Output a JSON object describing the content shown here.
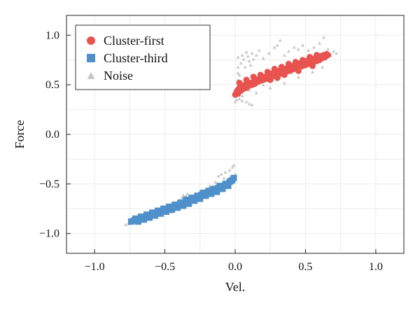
{
  "chart_data": {
    "type": "scatter",
    "title": "",
    "xlabel": "Vel.",
    "ylabel": "Force",
    "xlim": [
      -1.2,
      1.2
    ],
    "ylim": [
      -1.2,
      1.2
    ],
    "x_ticks": [
      -1.0,
      -0.5,
      0.0,
      0.5,
      1.0
    ],
    "x_tick_labels": [
      "−1.0",
      "−0.5",
      "0.0",
      "0.5",
      "1.0"
    ],
    "y_ticks": [
      1.0,
      0.5,
      0.0,
      -0.5,
      -1.0
    ],
    "y_tick_labels": [
      "1.0",
      "0.5",
      "0.0",
      "−0.5",
      "−1.0"
    ],
    "grid": true,
    "legend_position": "top-left",
    "series": [
      {
        "name": "Cluster-first",
        "marker": "circle",
        "color": "#e8534f",
        "points": [
          [
            0.0,
            0.4
          ],
          [
            0.01,
            0.43
          ],
          [
            0.02,
            0.45
          ],
          [
            0.03,
            0.47
          ],
          [
            0.05,
            0.48
          ],
          [
            0.07,
            0.5
          ],
          [
            0.09,
            0.51
          ],
          [
            0.11,
            0.52
          ],
          [
            0.13,
            0.53
          ],
          [
            0.15,
            0.55
          ],
          [
            0.17,
            0.56
          ],
          [
            0.19,
            0.57
          ],
          [
            0.21,
            0.58
          ],
          [
            0.23,
            0.59
          ],
          [
            0.25,
            0.61
          ],
          [
            0.27,
            0.62
          ],
          [
            0.29,
            0.63
          ],
          [
            0.31,
            0.64
          ],
          [
            0.33,
            0.65
          ],
          [
            0.35,
            0.66
          ],
          [
            0.37,
            0.67
          ],
          [
            0.39,
            0.68
          ],
          [
            0.41,
            0.69
          ],
          [
            0.43,
            0.7
          ],
          [
            0.45,
            0.71
          ],
          [
            0.47,
            0.72
          ],
          [
            0.49,
            0.73
          ],
          [
            0.51,
            0.74
          ],
          [
            0.53,
            0.75
          ],
          [
            0.55,
            0.76
          ],
          [
            0.57,
            0.77
          ],
          [
            0.59,
            0.78
          ],
          [
            0.61,
            0.79
          ],
          [
            0.63,
            0.8
          ],
          [
            0.65,
            0.81
          ],
          [
            0.02,
            0.41
          ],
          [
            0.04,
            0.44
          ],
          [
            0.06,
            0.46
          ],
          [
            0.08,
            0.47
          ],
          [
            0.1,
            0.49
          ],
          [
            0.12,
            0.5
          ],
          [
            0.14,
            0.51
          ],
          [
            0.16,
            0.53
          ],
          [
            0.18,
            0.54
          ],
          [
            0.2,
            0.55
          ],
          [
            0.22,
            0.56
          ],
          [
            0.24,
            0.57
          ],
          [
            0.26,
            0.58
          ],
          [
            0.28,
            0.59
          ],
          [
            0.3,
            0.6
          ],
          [
            0.32,
            0.61
          ],
          [
            0.34,
            0.62
          ],
          [
            0.36,
            0.63
          ],
          [
            0.38,
            0.64
          ],
          [
            0.4,
            0.65
          ],
          [
            0.42,
            0.66
          ],
          [
            0.44,
            0.67
          ],
          [
            0.46,
            0.68
          ],
          [
            0.48,
            0.69
          ],
          [
            0.5,
            0.7
          ],
          [
            0.52,
            0.71
          ],
          [
            0.54,
            0.72
          ],
          [
            0.56,
            0.73
          ],
          [
            0.58,
            0.74
          ],
          [
            0.6,
            0.75
          ],
          [
            0.62,
            0.77
          ],
          [
            0.64,
            0.78
          ],
          [
            0.66,
            0.8
          ],
          [
            0.03,
            0.52
          ],
          [
            0.08,
            0.55
          ],
          [
            0.13,
            0.58
          ],
          [
            0.18,
            0.6
          ],
          [
            0.23,
            0.63
          ],
          [
            0.28,
            0.66
          ],
          [
            0.33,
            0.68
          ],
          [
            0.38,
            0.71
          ],
          [
            0.43,
            0.73
          ],
          [
            0.48,
            0.75
          ],
          [
            0.53,
            0.78
          ],
          [
            0.58,
            0.8
          ],
          [
            0.25,
            0.55
          ],
          [
            0.3,
            0.57
          ],
          [
            0.35,
            0.6
          ],
          [
            0.45,
            0.64
          ],
          [
            0.55,
            0.69
          ]
        ]
      },
      {
        "name": "Cluster-third",
        "marker": "square",
        "color": "#4f90cb",
        "points": [
          [
            -0.74,
            -0.88
          ],
          [
            -0.72,
            -0.87
          ],
          [
            -0.7,
            -0.86
          ],
          [
            -0.68,
            -0.85
          ],
          [
            -0.66,
            -0.84
          ],
          [
            -0.64,
            -0.83
          ],
          [
            -0.62,
            -0.82
          ],
          [
            -0.6,
            -0.81
          ],
          [
            -0.58,
            -0.8
          ],
          [
            -0.56,
            -0.79
          ],
          [
            -0.54,
            -0.78
          ],
          [
            -0.52,
            -0.77
          ],
          [
            -0.5,
            -0.76
          ],
          [
            -0.48,
            -0.75
          ],
          [
            -0.46,
            -0.74
          ],
          [
            -0.44,
            -0.73
          ],
          [
            -0.42,
            -0.72
          ],
          [
            -0.4,
            -0.71
          ],
          [
            -0.38,
            -0.7
          ],
          [
            -0.36,
            -0.69
          ],
          [
            -0.34,
            -0.68
          ],
          [
            -0.32,
            -0.66
          ],
          [
            -0.3,
            -0.65
          ],
          [
            -0.28,
            -0.64
          ],
          [
            -0.26,
            -0.62
          ],
          [
            -0.24,
            -0.61
          ],
          [
            -0.22,
            -0.6
          ],
          [
            -0.2,
            -0.59
          ],
          [
            -0.18,
            -0.58
          ],
          [
            -0.16,
            -0.56
          ],
          [
            -0.14,
            -0.55
          ],
          [
            -0.12,
            -0.54
          ],
          [
            -0.1,
            -0.53
          ],
          [
            -0.08,
            -0.52
          ],
          [
            -0.06,
            -0.5
          ],
          [
            -0.04,
            -0.48
          ],
          [
            -0.02,
            -0.46
          ],
          [
            -0.01,
            -0.44
          ],
          [
            -0.71,
            -0.85
          ],
          [
            -0.67,
            -0.83
          ],
          [
            -0.63,
            -0.81
          ],
          [
            -0.59,
            -0.79
          ],
          [
            -0.55,
            -0.77
          ],
          [
            -0.51,
            -0.75
          ],
          [
            -0.47,
            -0.73
          ],
          [
            -0.43,
            -0.71
          ],
          [
            -0.39,
            -0.69
          ],
          [
            -0.35,
            -0.66
          ],
          [
            -0.31,
            -0.64
          ],
          [
            -0.27,
            -0.62
          ],
          [
            -0.23,
            -0.59
          ],
          [
            -0.19,
            -0.57
          ],
          [
            -0.15,
            -0.55
          ],
          [
            -0.11,
            -0.52
          ],
          [
            -0.07,
            -0.5
          ],
          [
            -0.03,
            -0.47
          ],
          [
            -0.69,
            -0.88
          ],
          [
            -0.65,
            -0.86
          ],
          [
            -0.61,
            -0.84
          ],
          [
            -0.57,
            -0.82
          ],
          [
            -0.53,
            -0.8
          ],
          [
            -0.49,
            -0.78
          ],
          [
            -0.45,
            -0.76
          ],
          [
            -0.41,
            -0.74
          ],
          [
            -0.37,
            -0.72
          ],
          [
            -0.33,
            -0.7
          ],
          [
            -0.29,
            -0.67
          ],
          [
            -0.25,
            -0.65
          ],
          [
            -0.21,
            -0.62
          ],
          [
            -0.17,
            -0.6
          ],
          [
            -0.13,
            -0.58
          ],
          [
            -0.09,
            -0.55
          ],
          [
            -0.05,
            -0.52
          ]
        ]
      },
      {
        "name": "Noise",
        "marker": "triangle",
        "color": "#c8c8c8",
        "points": [
          [
            -0.78,
            -0.91
          ],
          [
            -0.76,
            -0.9
          ],
          [
            -0.73,
            -0.89
          ],
          [
            -0.6,
            -0.84
          ],
          [
            -0.45,
            -0.78
          ],
          [
            -0.4,
            -0.66
          ],
          [
            -0.38,
            -0.64
          ],
          [
            -0.36,
            -0.63
          ],
          [
            -0.34,
            -0.6
          ],
          [
            -0.37,
            -0.61
          ],
          [
            -0.35,
            -0.62
          ],
          [
            -0.36,
            -0.65
          ],
          [
            -0.28,
            -0.61
          ],
          [
            -0.26,
            -0.6
          ],
          [
            -0.22,
            -0.56
          ],
          [
            -0.18,
            -0.52
          ],
          [
            -0.14,
            -0.48
          ],
          [
            -0.12,
            -0.42
          ],
          [
            -0.1,
            -0.4
          ],
          [
            -0.07,
            -0.38
          ],
          [
            -0.04,
            -0.36
          ],
          [
            -0.02,
            -0.33
          ],
          [
            -0.01,
            -0.31
          ],
          [
            0.0,
            -0.4
          ],
          [
            -0.08,
            -0.44
          ],
          [
            0.0,
            0.33
          ],
          [
            0.01,
            0.35
          ],
          [
            0.03,
            0.36
          ],
          [
            0.05,
            0.34
          ],
          [
            0.08,
            0.33
          ],
          [
            0.1,
            0.31
          ],
          [
            0.12,
            0.3
          ],
          [
            0.02,
            0.55
          ],
          [
            0.02,
            0.62
          ],
          [
            0.02,
            0.68
          ],
          [
            0.02,
            0.78
          ],
          [
            0.03,
            0.6
          ],
          [
            0.04,
            0.72
          ],
          [
            0.05,
            0.8
          ],
          [
            0.06,
            0.76
          ],
          [
            0.07,
            0.68
          ],
          [
            0.08,
            0.83
          ],
          [
            0.09,
            0.79
          ],
          [
            0.1,
            0.74
          ],
          [
            0.11,
            0.7
          ],
          [
            0.12,
            0.82
          ],
          [
            0.13,
            0.76
          ],
          [
            0.15,
            0.8
          ],
          [
            0.17,
            0.85
          ],
          [
            0.2,
            0.77
          ],
          [
            0.24,
            0.82
          ],
          [
            0.28,
            0.88
          ],
          [
            0.3,
            0.9
          ],
          [
            0.32,
            0.95
          ],
          [
            0.35,
            0.8
          ],
          [
            0.38,
            0.84
          ],
          [
            0.42,
            0.88
          ],
          [
            0.45,
            0.86
          ],
          [
            0.48,
            0.9
          ],
          [
            0.52,
            0.85
          ],
          [
            0.56,
            0.88
          ],
          [
            0.6,
            0.92
          ],
          [
            0.63,
            0.98
          ],
          [
            0.66,
            0.86
          ],
          [
            0.7,
            0.84
          ],
          [
            0.72,
            0.82
          ],
          [
            0.68,
            0.8
          ],
          [
            0.64,
            0.76
          ],
          [
            0.5,
            0.68
          ],
          [
            0.4,
            0.62
          ],
          [
            0.3,
            0.56
          ],
          [
            0.2,
            0.5
          ],
          [
            0.1,
            0.45
          ],
          [
            0.05,
            0.39
          ],
          [
            0.15,
            0.42
          ],
          [
            0.25,
            0.47
          ],
          [
            0.35,
            0.52
          ],
          [
            0.45,
            0.58
          ],
          [
            0.55,
            0.63
          ],
          [
            0.62,
            0.68
          ]
        ]
      }
    ]
  }
}
